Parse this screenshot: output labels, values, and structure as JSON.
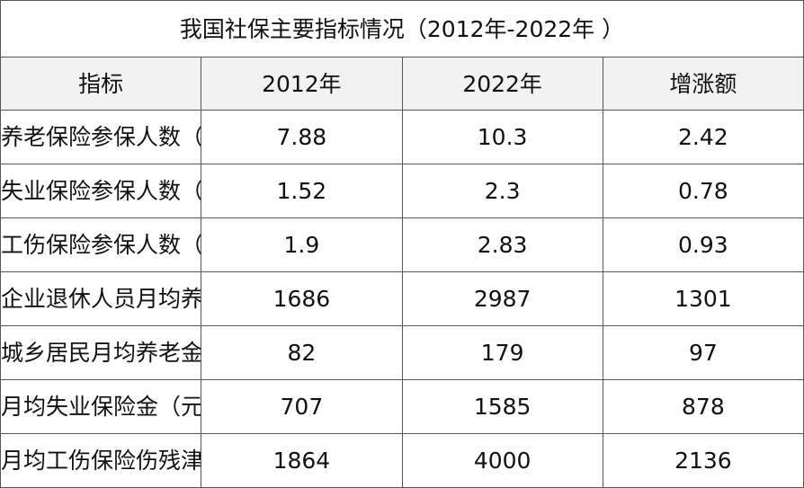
{
  "title": "我国社保主要指标情况（2012年-2022年 ）",
  "headers": {
    "indicator": "指标",
    "year_2012": "2012年",
    "year_2022": "2022年",
    "increase": "增涨额"
  },
  "rows": [
    {
      "indicator": "养老保险参保人数（亿人 ）",
      "v2012": "7.88",
      "v2022": "10.3",
      "delta": "2.42"
    },
    {
      "indicator": "失业保险参保人数（亿人 ）",
      "v2012": "1.52",
      "v2022": "2.3",
      "delta": "0.78"
    },
    {
      "indicator": "工伤保险参保人数（亿人 ）",
      "v2012": "1.9",
      "v2022": "2.83",
      "delta": "0.93"
    },
    {
      "indicator": "企业退休人员月均养老金（元 ）",
      "v2012": "1686",
      "v2022": "2987",
      "delta": "1301"
    },
    {
      "indicator": "城乡居民月均养老金（元 ）",
      "v2012": "82",
      "v2022": "179",
      "delta": "97"
    },
    {
      "indicator": "月均失业保险金（元 ）",
      "v2012": "707",
      "v2022": "1585",
      "delta": "878"
    },
    {
      "indicator": "月均工伤保险伤残津贴（元 ）",
      "v2012": "1864",
      "v2022": "4000",
      "delta": "2136"
    }
  ],
  "colors": {
    "header_background": "#f2f2f2",
    "border": "#555555",
    "text": "#111111"
  }
}
